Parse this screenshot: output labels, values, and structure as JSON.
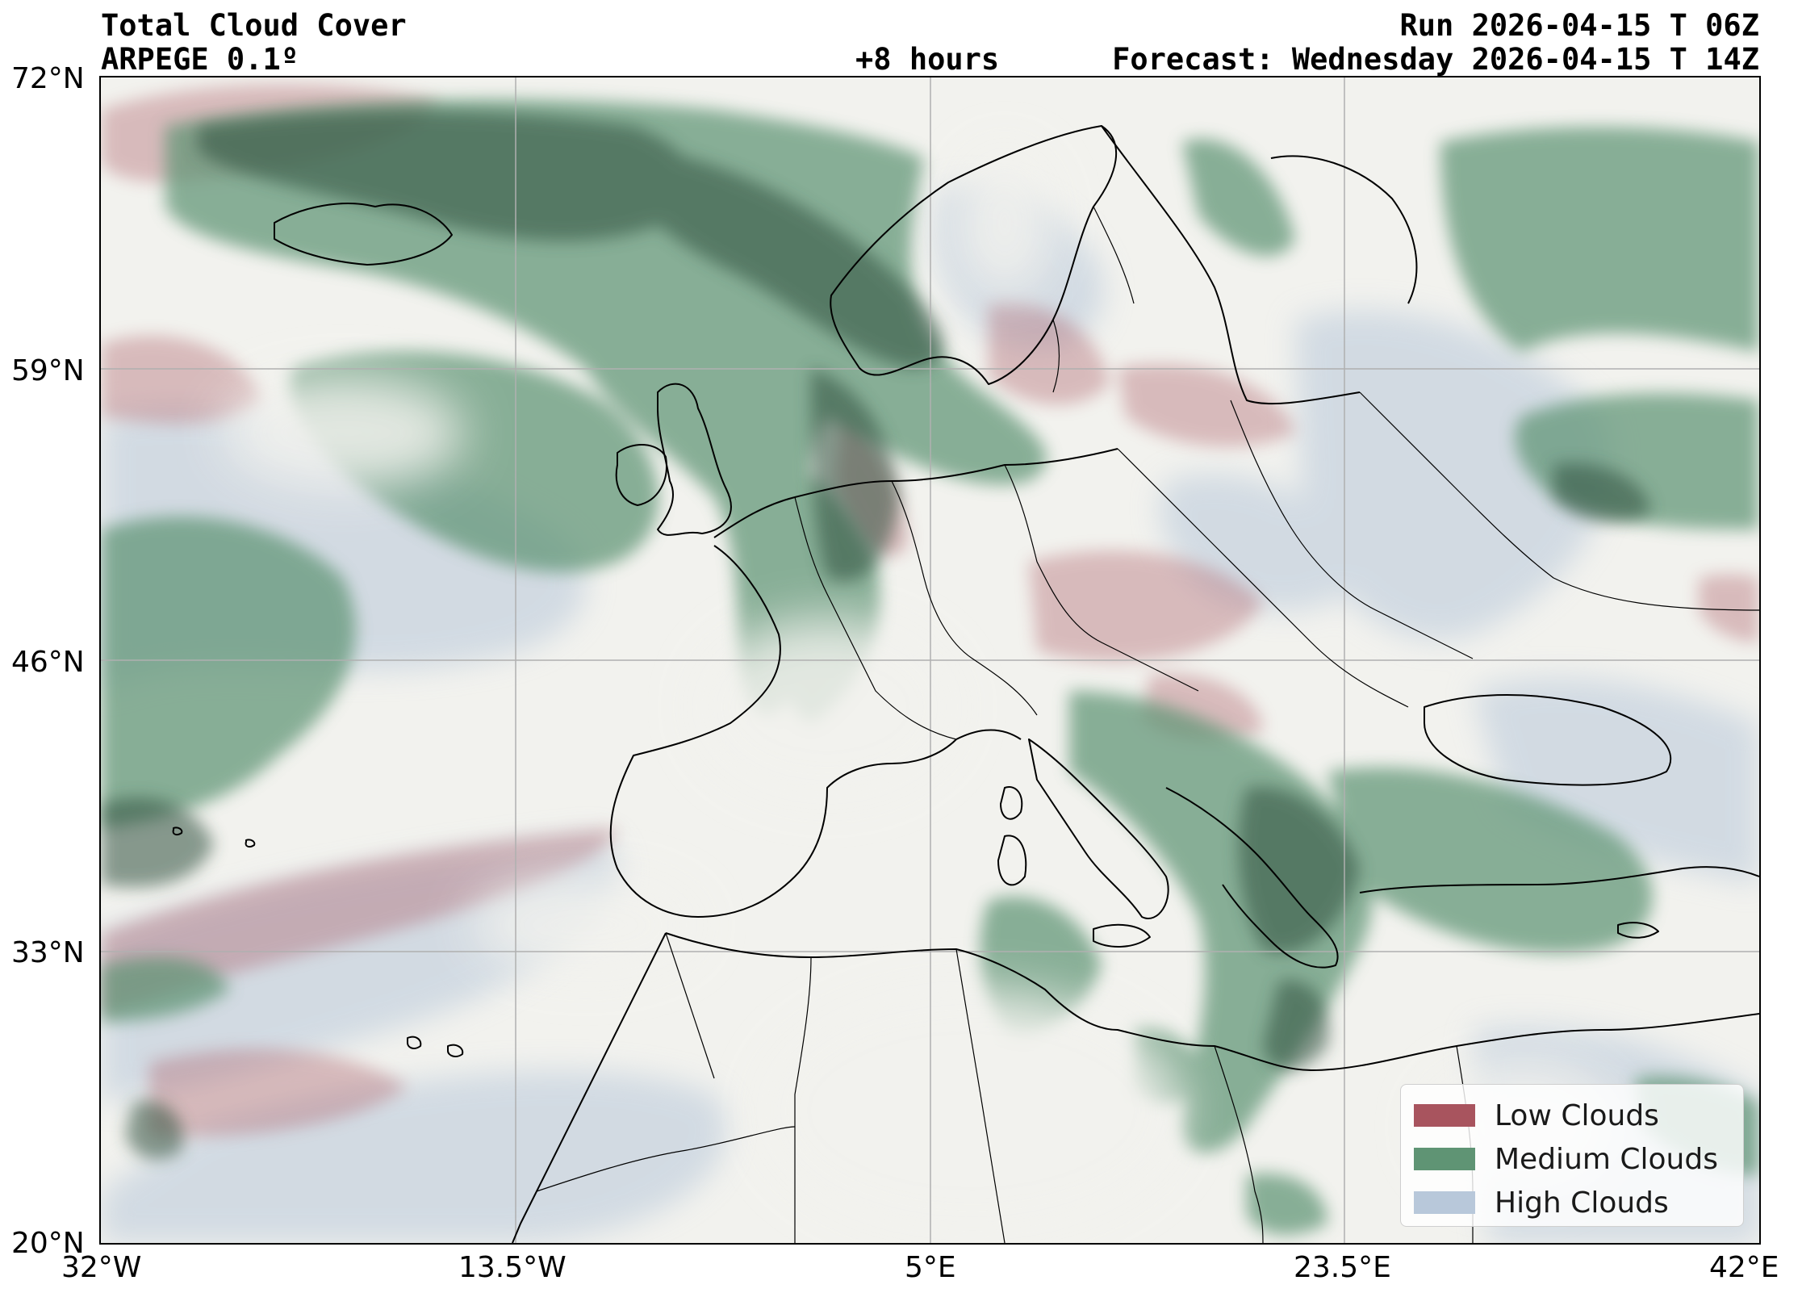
{
  "header": {
    "title": "Total Cloud Cover",
    "model": "ARPEGE 0.1º",
    "run": "Run 2026-04-15 T 06Z",
    "lead": "+8 hours",
    "forecast": "Forecast: Wednesday 2026-04-15 T 14Z"
  },
  "axes": {
    "lat_labels": [
      "72°N",
      "59°N",
      "46°N",
      "33°N",
      "20°N"
    ],
    "lon_labels": [
      "32°W",
      "13.5°W",
      "5°E",
      "23.5°E",
      "42°E"
    ]
  },
  "legend": {
    "items": [
      {
        "label": "Low Clouds",
        "color": "#a8545e"
      },
      {
        "label": "Medium Clouds",
        "color": "#5f9474"
      },
      {
        "label": "High Clouds",
        "color": "#b8c8da"
      }
    ]
  },
  "colors": {
    "background": "#f2f2ee",
    "low": "#a8545e",
    "medium": "#5f9474",
    "medium_dark": "#2f4f3c",
    "high": "#b8c8da",
    "grid": "#b0b0b0",
    "coast": "#000000"
  }
}
